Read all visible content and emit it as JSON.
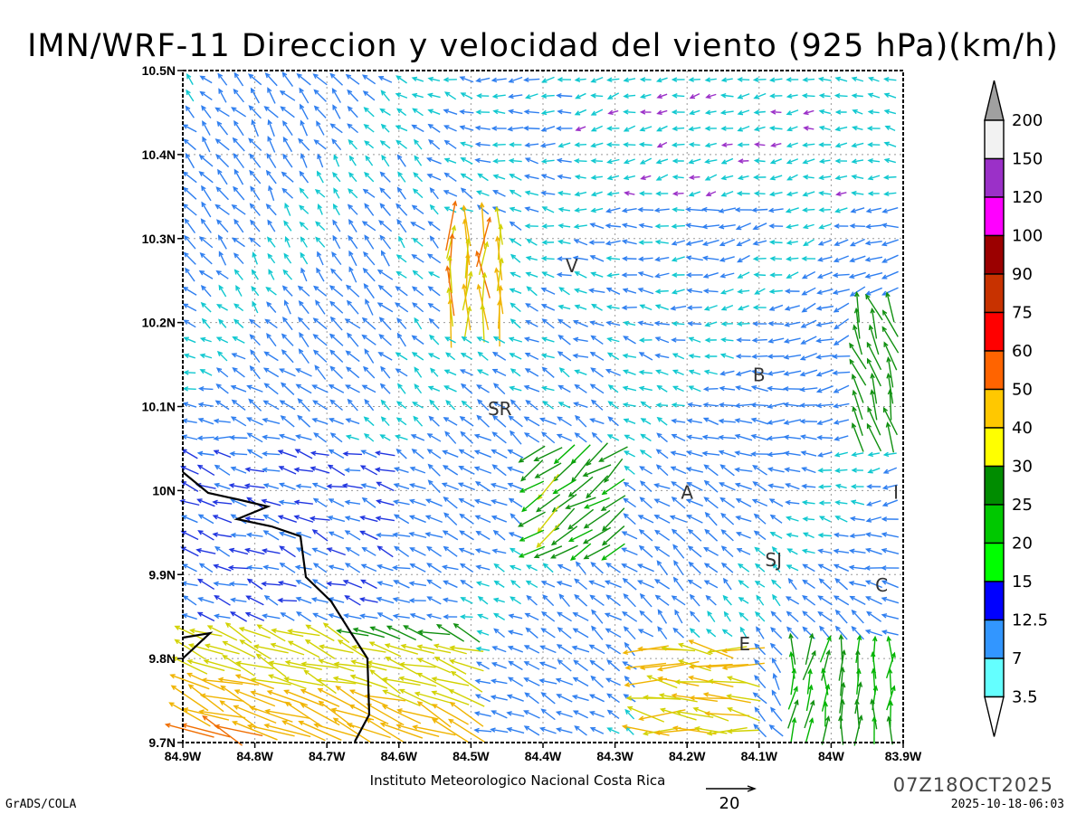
{
  "title": "IMN/WRF-11 Direccion y velocidad del viento (925 hPa)(km/h)",
  "x_ticks": [
    "84.9W",
    "84.8W",
    "84.7W",
    "84.6W",
    "84.5W",
    "84.4W",
    "84.3W",
    "84.2W",
    "84.1W",
    "84W",
    "83.9W"
  ],
  "y_ticks": [
    "10.5N",
    "10.4N",
    "10.3N",
    "10.2N",
    "10.1N",
    "10N",
    "9.9N",
    "9.8N",
    "9.7N"
  ],
  "x_range": [
    -84.9,
    -83.9
  ],
  "y_range": [
    9.7,
    10.5
  ],
  "colorbar": {
    "labels": [
      "200",
      "150",
      "120",
      "100",
      "90",
      "75",
      "60",
      "50",
      "40",
      "30",
      "25",
      "20",
      "15",
      "12.5",
      "7",
      "3.5"
    ],
    "colors": [
      "#a0a0a0",
      "#f2f2f2",
      "#9b30c8",
      "#ff00ff",
      "#9b0000",
      "#c83200",
      "#ff0000",
      "#ff6400",
      "#ffc800",
      "#ffff00",
      "#008c00",
      "#00c800",
      "#00ff00",
      "#0000ff",
      "#3296ff",
      "#64ffff",
      "#ffffff"
    ]
  },
  "cities": [
    {
      "label": "V",
      "lon": -84.36,
      "lat": 10.26
    },
    {
      "label": "SR",
      "lon": -84.46,
      "lat": 10.09
    },
    {
      "label": "B",
      "lon": -84.1,
      "lat": 10.13
    },
    {
      "label": "A",
      "lon": -84.2,
      "lat": 9.99
    },
    {
      "label": "I",
      "lon": -83.91,
      "lat": 9.99
    },
    {
      "label": "SJ",
      "lon": -84.08,
      "lat": 9.91
    },
    {
      "label": "C",
      "lon": -83.93,
      "lat": 9.88
    },
    {
      "label": "E",
      "lon": -84.12,
      "lat": 9.81
    }
  ],
  "footer": {
    "credit": "Instituto Meteorologico Nacional Costa Rica",
    "ref_vector": "20",
    "model_time": "07Z18OCT2025",
    "run_time": "2025-10-18-06:03",
    "software": "GrADS/COLA"
  }
}
